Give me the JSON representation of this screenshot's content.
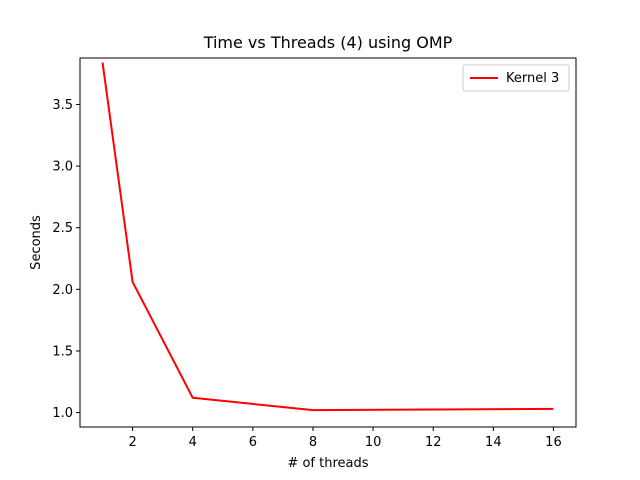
{
  "chart_data": {
    "type": "line",
    "title": "Time vs Threads (4) using OMP",
    "xlabel": "# of threads",
    "ylabel": "Seconds",
    "xlim": [
      0.25,
      16.75
    ],
    "ylim": [
      0.883,
      3.877
    ],
    "x_ticks": [
      2,
      4,
      6,
      8,
      10,
      12,
      14,
      16
    ],
    "y_ticks": [
      1.0,
      1.5,
      2.0,
      2.5,
      3.0,
      3.5
    ],
    "x_tick_labels": [
      "2",
      "4",
      "6",
      "8",
      "10",
      "12",
      "14",
      "16"
    ],
    "y_tick_labels": [
      "1.0",
      "1.5",
      "2.0",
      "2.5",
      "3.0",
      "3.5"
    ],
    "grid": false,
    "legend_position": "top-right",
    "series": [
      {
        "name": "Kernel 3",
        "color": "#ff0000",
        "x": [
          1,
          2,
          4,
          8,
          16
        ],
        "y": [
          3.84,
          2.06,
          1.12,
          1.02,
          1.03
        ]
      }
    ]
  }
}
